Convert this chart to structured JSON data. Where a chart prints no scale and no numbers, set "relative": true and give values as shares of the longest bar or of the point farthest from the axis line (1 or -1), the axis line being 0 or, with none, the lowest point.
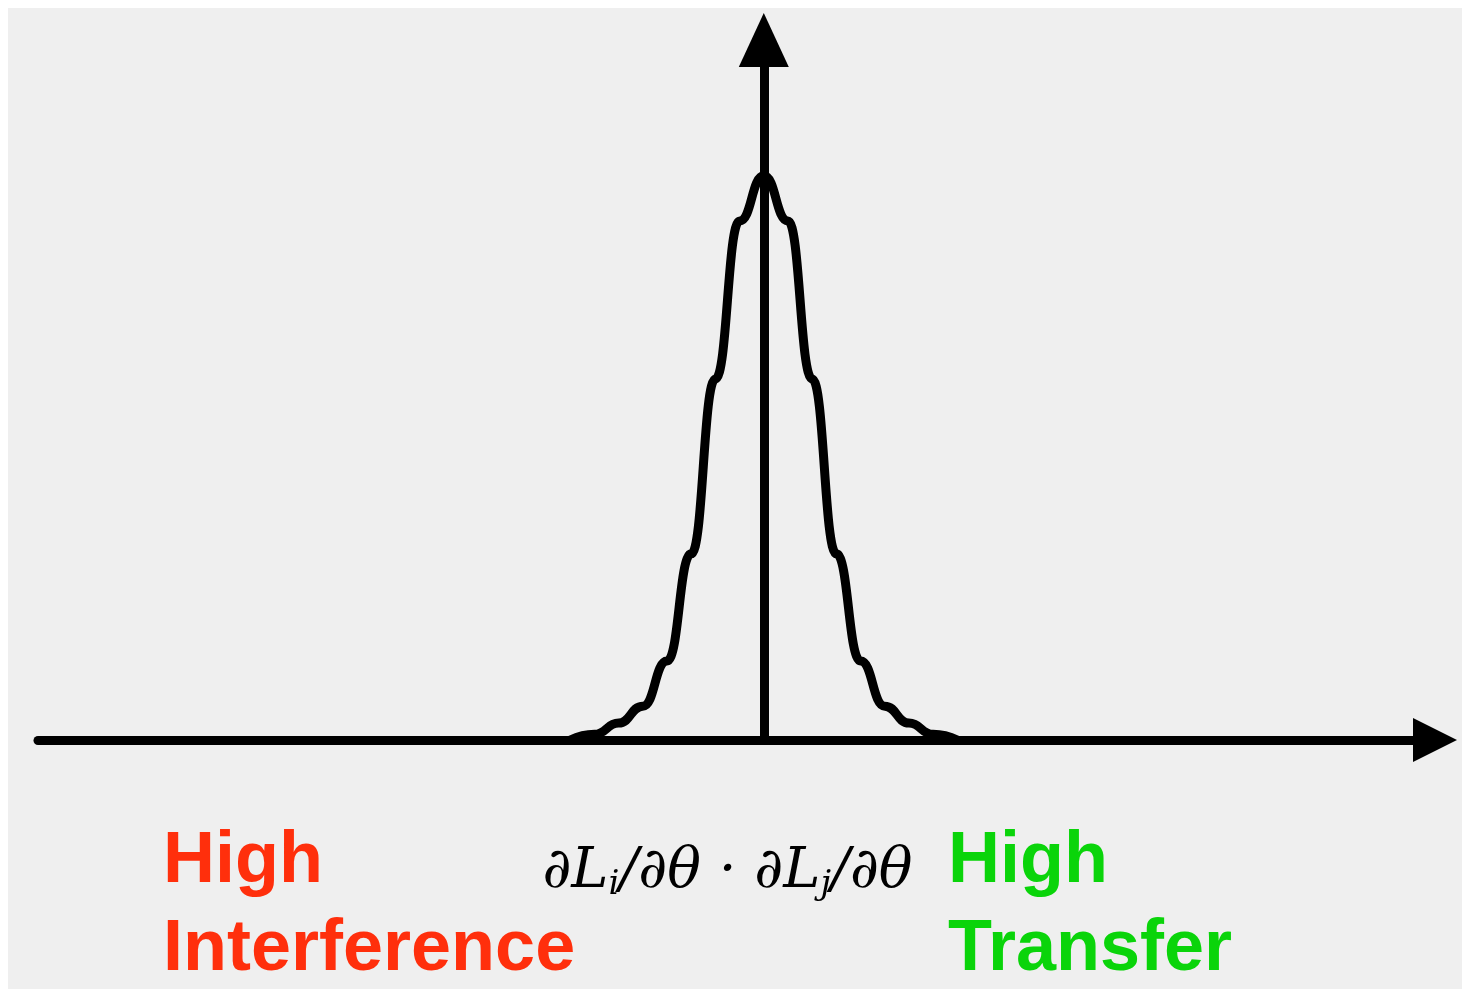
{
  "chart_data": {
    "type": "line",
    "relative": true,
    "xlabel": "∂L$_{i}$/∂θ · ∂L$_{j}$/∂θ",
    "annotations": [
      "High Interference",
      "High Transfer"
    ],
    "categories": [
      null,
      null,
      null,
      null,
      null,
      null,
      null,
      null,
      null,
      null,
      null,
      null,
      null,
      null,
      null,
      null,
      null,
      null,
      null,
      null,
      null,
      null,
      null,
      null,
      null,
      null,
      null,
      null,
      null,
      null,
      null,
      null,
      null,
      null,
      null,
      null,
      null,
      null,
      null,
      null,
      null,
      null,
      null,
      null,
      null,
      null,
      null,
      null,
      null,
      null,
      null,
      null,
      null,
      null,
      null,
      null,
      null,
      null
    ],
    "series": [
      {
        "color": "#000000",
        "values": [
          null,
          null,
          null,
          null,
          null,
          null,
          null,
          null,
          null,
          null,
          null,
          null,
          null,
          null,
          null,
          null,
          null,
          null,
          null,
          null,
          null,
          null,
          0,
          0.01,
          0.03,
          0.06,
          0.14,
          0.33,
          0.64,
          0.92,
          1,
          0.92,
          0.64,
          0.33,
          0.14,
          0.06,
          0.03,
          0.01,
          0,
          null,
          null,
          null,
          null,
          null,
          null,
          null,
          null,
          null,
          null,
          null,
          null,
          null,
          null,
          null,
          null,
          null,
          null,
          null
        ]
      }
    ],
    "line_style": "solid",
    "grid": false
  }
}
